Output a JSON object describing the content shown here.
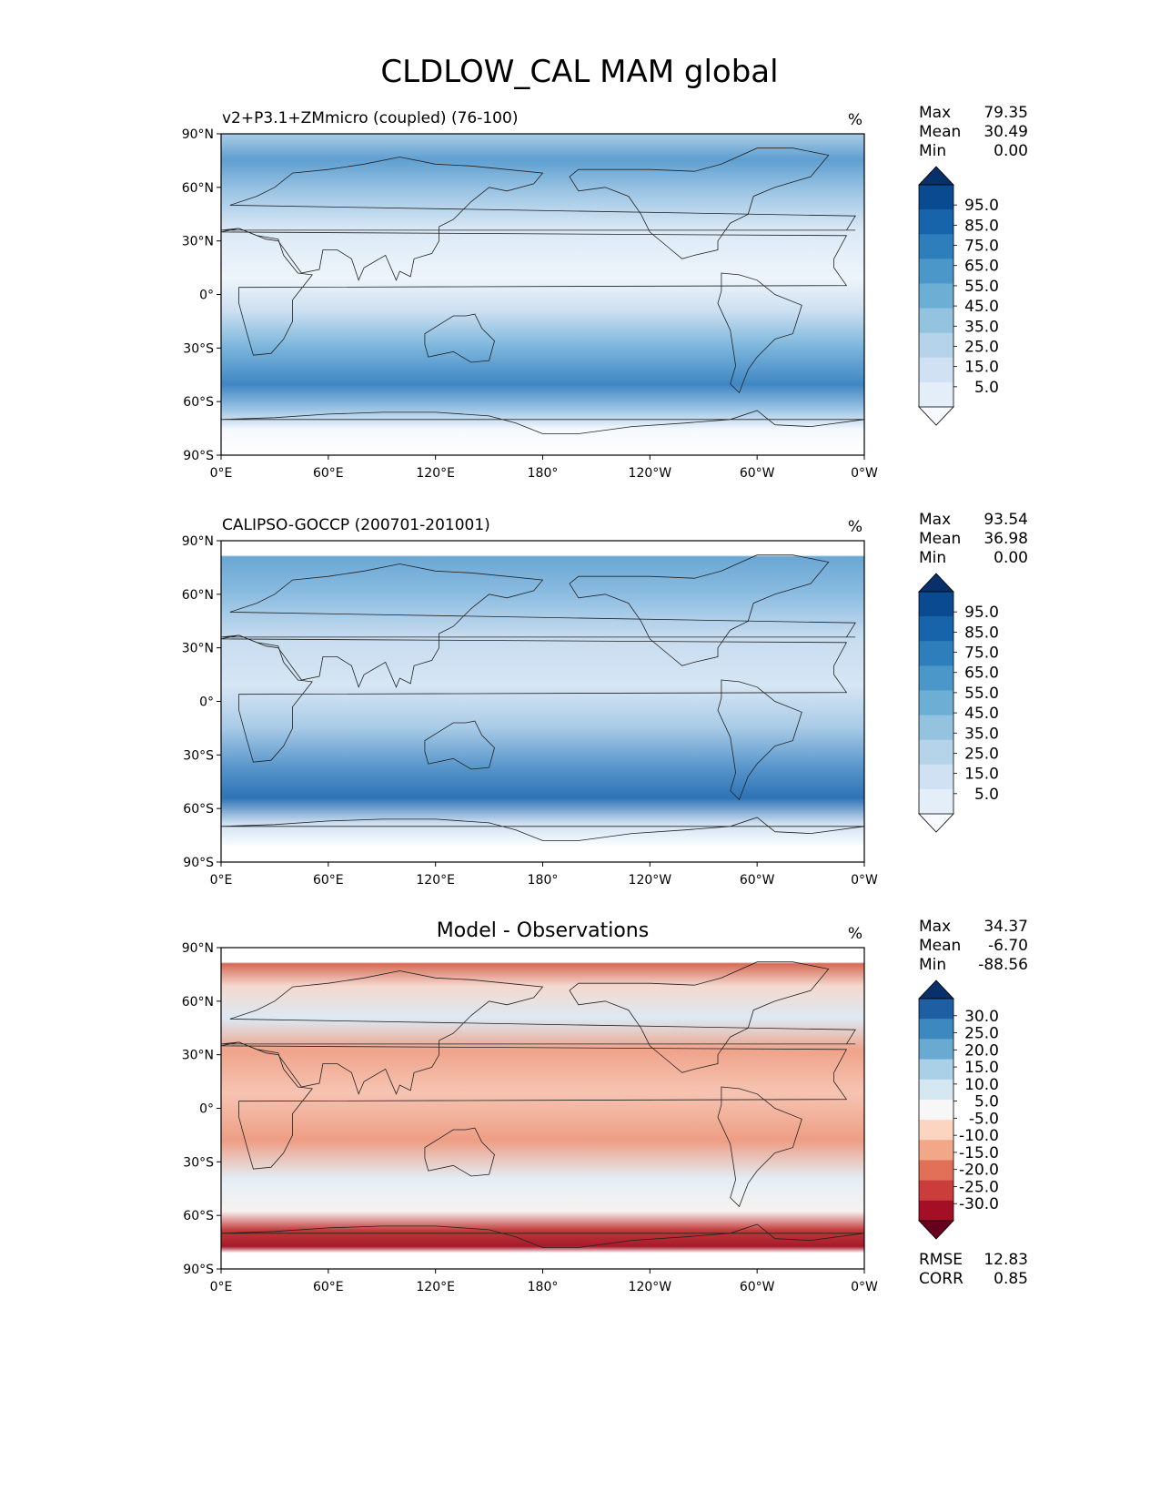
{
  "figure": {
    "title": "CLDLOW_CAL MAM global"
  },
  "axes": {
    "lat_ticks": [
      "90°N",
      "60°N",
      "30°N",
      "0°",
      "30°S",
      "60°S",
      "90°S"
    ],
    "lon_ticks": [
      "0°E",
      "60°E",
      "120°E",
      "180°",
      "120°W",
      "60°W",
      "0°W"
    ]
  },
  "chart_data": [
    {
      "type": "heatmap",
      "id": "model",
      "title_left": "v2+P3.1+ZMmicro (coupled) (76-100)",
      "title_center": "",
      "units": "%",
      "stats": [
        {
          "label": "Max",
          "value": "79.35"
        },
        {
          "label": "Mean",
          "value": "30.49"
        },
        {
          "label": "Min",
          "value": "0.00"
        }
      ],
      "colorbar_labels": [
        "95.0",
        "85.0",
        "75.0",
        "65.0",
        "55.0",
        "45.0",
        "35.0",
        "25.0",
        "15.0",
        "5.0"
      ],
      "colorbar_colors": [
        "#f7fbff",
        "#e3eef9",
        "#cfe1f2",
        "#b5d4e9",
        "#93c3df",
        "#6daed5",
        "#4b97c9",
        "#2f7ebc",
        "#1864aa",
        "#0a4a90",
        "#08306b"
      ],
      "xlim": [
        0,
        360
      ],
      "ylim": [
        -90,
        90
      ],
      "extra_stats": []
    },
    {
      "type": "heatmap",
      "id": "obs",
      "title_left": "CALIPSO-GOCCP (200701-201001)",
      "title_center": "",
      "units": "%",
      "stats": [
        {
          "label": "Max",
          "value": "93.54"
        },
        {
          "label": "Mean",
          "value": "36.98"
        },
        {
          "label": "Min",
          "value": "0.00"
        }
      ],
      "colorbar_labels": [
        "95.0",
        "85.0",
        "75.0",
        "65.0",
        "55.0",
        "45.0",
        "35.0",
        "25.0",
        "15.0",
        "5.0"
      ],
      "colorbar_colors": [
        "#f7fbff",
        "#e3eef9",
        "#cfe1f2",
        "#b5d4e9",
        "#93c3df",
        "#6daed5",
        "#4b97c9",
        "#2f7ebc",
        "#1864aa",
        "#0a4a90",
        "#08306b"
      ],
      "xlim": [
        0,
        360
      ],
      "ylim": [
        -90,
        90
      ],
      "extra_stats": []
    },
    {
      "type": "heatmap",
      "id": "diff",
      "title_left": "",
      "title_center": "Model - Observations",
      "units": "%",
      "stats": [
        {
          "label": "Max",
          "value": "34.37"
        },
        {
          "label": "Mean",
          "value": "-6.70"
        },
        {
          "label": "Min",
          "value": "-88.56"
        }
      ],
      "colorbar_labels": [
        "30.0",
        "25.0",
        "20.0",
        "15.0",
        "10.0",
        "5.0",
        "-5.0",
        "-10.0",
        "-15.0",
        "-20.0",
        "-25.0",
        "-30.0"
      ],
      "colorbar_colors": [
        "#67001f",
        "#a50f26",
        "#cb3d3a",
        "#e07058",
        "#f2a789",
        "#fcd5c0",
        "#f7f7f7",
        "#d5e7f1",
        "#a9d0e6",
        "#6aaad2",
        "#3c88bf",
        "#1d5fa2",
        "#08306b"
      ],
      "xlim": [
        0,
        360
      ],
      "ylim": [
        -90,
        90
      ],
      "extra_stats": [
        {
          "label": "RMSE",
          "value": "12.83"
        },
        {
          "label": "CORR",
          "value": "0.85"
        }
      ]
    }
  ]
}
